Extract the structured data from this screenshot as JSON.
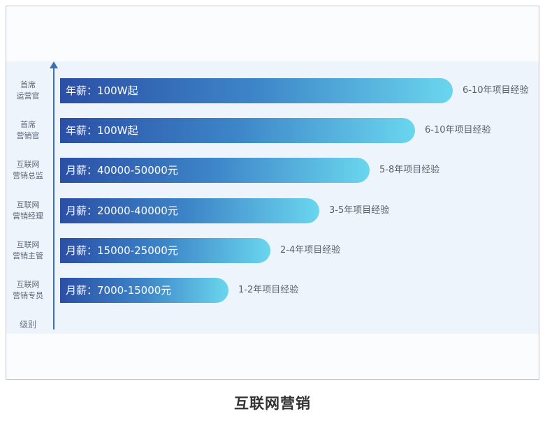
{
  "chart_data": {
    "type": "bar",
    "orientation": "horizontal",
    "axis_label": "级别",
    "categories": [
      [
        "首席",
        "运营官"
      ],
      [
        "首席",
        "营销官"
      ],
      [
        "互联网",
        "营销总监"
      ],
      [
        "互联网",
        "营销经理"
      ],
      [
        "互联网",
        "营销主管"
      ],
      [
        "互联网",
        "营销专员"
      ]
    ],
    "bar_labels": [
      "年薪：100W起",
      "年薪：100W起",
      "月薪：40000-50000元",
      "月薪：20000-40000元",
      "月薪：15000-25000元",
      "月薪：7000-15000元"
    ],
    "experience": [
      "6-10年项目经验",
      "6-10年项目经验",
      "5-8年项目经验",
      "3-5年项目经验",
      "2-4年项目经验",
      "1-2年项目经验"
    ],
    "values": [
      1.0,
      0.904,
      0.789,
      0.661,
      0.536,
      0.428
    ],
    "colors": {
      "bar_start": "#2b4fa6",
      "bar_end": "#6ad6ee",
      "axis": "#3a6fb0"
    }
  },
  "footer": {
    "title": "互联网营销"
  }
}
